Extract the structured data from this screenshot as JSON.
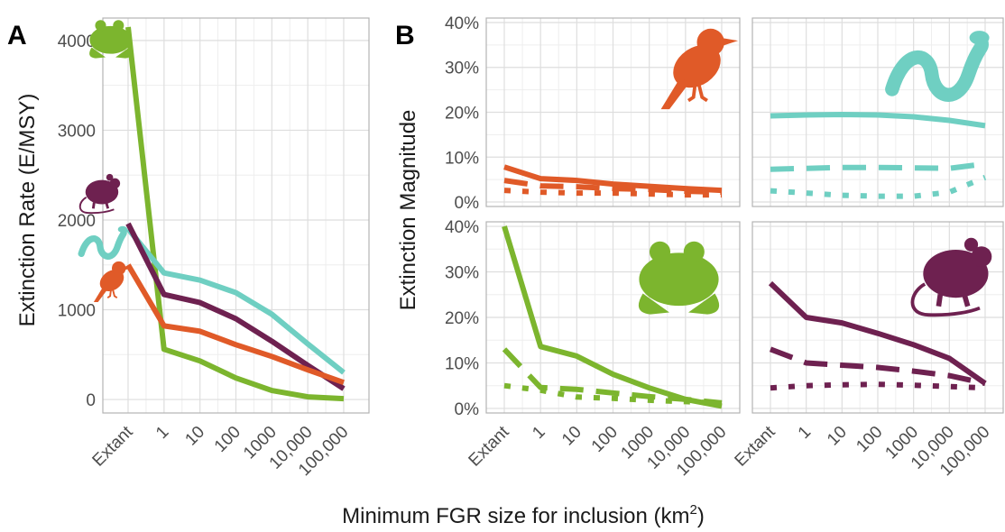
{
  "panel_labels": {
    "a": "A",
    "b": "B"
  },
  "axes": {
    "a_ylabel": "Extinction Rate (E/MSY)",
    "b_ylabel": "Extinction Magnitude",
    "xlabel": "Minimum FGR size for inclusion (km",
    "xlabel_sup": "2",
    "xlabel_close": ")"
  },
  "x_categories": [
    "Extant",
    "1",
    "10",
    "100",
    "1000",
    "10,000",
    "100,000"
  ],
  "colors": {
    "amphibians": "#7cb52e",
    "mammals": "#6e2150",
    "reptiles": "#6fcfc2",
    "birds": "#e05a28"
  },
  "icons": {
    "amphibians": "frog-icon",
    "mammals": "mouse-icon",
    "reptiles": "snake-icon",
    "birds": "bird-icon"
  },
  "chart_data": [
    {
      "type": "line",
      "panel": "A",
      "ylabel": "Extinction Rate (E/MSY)",
      "yticks": [
        "0",
        "1000",
        "2000",
        "3000",
        "4000"
      ],
      "ylim": [
        -150,
        4250
      ],
      "categories": [
        "Extant",
        "1",
        "10",
        "100",
        "1000",
        "10,000",
        "100,000"
      ],
      "series": [
        {
          "key": "amphibians",
          "color": "#7cb52e",
          "values": [
            4150,
            560,
            430,
            240,
            100,
            30,
            10
          ]
        },
        {
          "key": "reptiles",
          "color": "#6fcfc2",
          "values": [
            1900,
            1410,
            1330,
            1190,
            950,
            620,
            300
          ]
        },
        {
          "key": "mammals",
          "color": "#6e2150",
          "values": [
            1960,
            1170,
            1080,
            900,
            650,
            380,
            120
          ]
        },
        {
          "key": "birds",
          "color": "#e05a28",
          "values": [
            1500,
            820,
            760,
            610,
            480,
            330,
            190
          ]
        }
      ],
      "grid": true
    },
    {
      "type": "line",
      "panel": "B",
      "ylabel": "Extinction Magnitude",
      "yticks": [
        "0%",
        "10%",
        "20%",
        "30%",
        "40%"
      ],
      "ylim": [
        -1,
        41
      ],
      "categories": [
        "Extant",
        "1",
        "10",
        "100",
        "1000",
        "10,000",
        "100,000"
      ],
      "facets": [
        {
          "key": "birds",
          "color": "#e05a28",
          "series": [
            {
              "style": "solid",
              "values": [
                7.8,
                5.2,
                4.8,
                4.0,
                3.5,
                3.0,
                2.6
              ]
            },
            {
              "style": "dashed",
              "values": [
                4.8,
                3.6,
                3.4,
                3.0,
                2.8,
                2.4,
                2.2
              ]
            },
            {
              "style": "dotted",
              "values": [
                2.6,
                2.2,
                2.0,
                2.0,
                1.8,
                1.6,
                1.6
              ]
            }
          ]
        },
        {
          "key": "reptiles",
          "color": "#6fcfc2",
          "series": [
            {
              "style": "solid",
              "values": [
                19.2,
                19.4,
                19.5,
                19.4,
                19.0,
                18.2,
                17.0
              ]
            },
            {
              "style": "dashed",
              "values": [
                7.3,
                7.5,
                7.7,
                7.7,
                7.6,
                7.5,
                8.5
              ]
            },
            {
              "style": "dotted",
              "values": [
                2.5,
                2.0,
                1.5,
                1.3,
                1.3,
                2.2,
                5.5
              ]
            }
          ]
        },
        {
          "key": "amphibians",
          "color": "#7cb52e",
          "series": [
            {
              "style": "solid",
              "values": [
                40,
                13.6,
                11.5,
                7.5,
                4.5,
                2.0,
                0.5
              ]
            },
            {
              "style": "dashed",
              "values": [
                13.0,
                4.6,
                4.2,
                3.4,
                2.6,
                2.0,
                1.2
              ]
            },
            {
              "style": "dotted",
              "values": [
                5.0,
                4.0,
                2.5,
                2.2,
                1.8,
                1.5,
                1.2
              ]
            }
          ]
        },
        {
          "key": "mammals",
          "color": "#6e2150",
          "series": [
            {
              "style": "solid",
              "values": [
                27.5,
                20.0,
                18.8,
                16.5,
                14.0,
                11.0,
                5.5
              ]
            },
            {
              "style": "dashed",
              "values": [
                13.0,
                10.0,
                9.5,
                9.0,
                8.2,
                7.2,
                5.5
              ]
            },
            {
              "style": "dotted",
              "values": [
                4.5,
                5.0,
                5.2,
                5.3,
                5.1,
                4.8,
                4.5
              ]
            }
          ]
        }
      ],
      "grid": true
    }
  ]
}
